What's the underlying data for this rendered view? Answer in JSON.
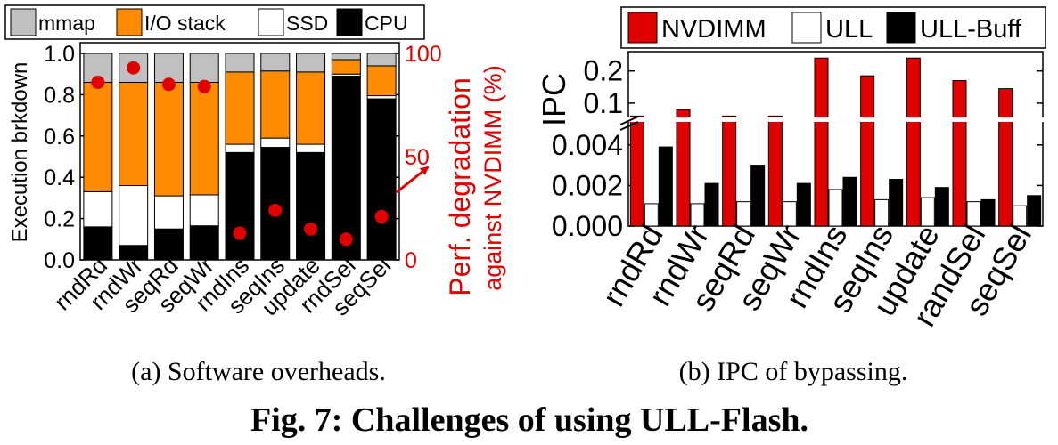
{
  "chart_data": [
    {
      "type": "bar",
      "stacked": true,
      "categories": [
        "rndRd",
        "rndWr",
        "seqRd",
        "seqWr",
        "rndIns",
        "seqIns",
        "update",
        "rndSel",
        "seqSel"
      ],
      "series": [
        {
          "name": "CPU",
          "color": "#000000",
          "values": [
            0.16,
            0.07,
            0.15,
            0.165,
            0.52,
            0.545,
            0.52,
            0.89,
            0.78
          ]
        },
        {
          "name": "SSD",
          "color": "#ffffff",
          "values": [
            0.17,
            0.29,
            0.16,
            0.15,
            0.04,
            0.045,
            0.04,
            0.01,
            0.015
          ]
        },
        {
          "name": "I/O stack",
          "color": "#ff8c00",
          "values": [
            0.53,
            0.5,
            0.55,
            0.545,
            0.35,
            0.325,
            0.35,
            0.07,
            0.145
          ]
        },
        {
          "name": "mmap",
          "color": "#c0c0c0",
          "values": [
            0.14,
            0.14,
            0.14,
            0.14,
            0.09,
            0.085,
            0.09,
            0.03,
            0.06
          ]
        }
      ],
      "degradation": {
        "color": "#e00000",
        "values": [
          86,
          93,
          85,
          84,
          13,
          24,
          15,
          10,
          21
        ]
      },
      "ylabel": "Execution brkdown",
      "y2label": [
        "Perf. degradation",
        "against NVDIMM (%)"
      ],
      "ylim": [
        0,
        1.0
      ],
      "yticks": [
        "0.0",
        "0.2",
        "0.4",
        "0.6",
        "0.8",
        "1.0"
      ],
      "y2lim": [
        0,
        100
      ],
      "y2ticks": [
        "0",
        "50",
        "100"
      ],
      "legend": "top",
      "grid": false
    },
    {
      "type": "bar",
      "broken_axis": true,
      "categories": [
        "rndRd",
        "rndWr",
        "seqRd",
        "seqWr",
        "rndIns",
        "seqIns",
        "update",
        "randSel",
        "seqSel"
      ],
      "series": [
        {
          "name": "NVDIMM",
          "color": "#e00000",
          "values": [
            0.06,
            0.08,
            0.06,
            0.06,
            0.24,
            0.185,
            0.24,
            0.17,
            0.145
          ]
        },
        {
          "name": "ULL",
          "color": "#ffffff",
          "values": [
            0.0011,
            0.0011,
            0.0012,
            0.0012,
            0.0018,
            0.0013,
            0.0014,
            0.0012,
            0.001
          ]
        },
        {
          "name": "ULL-Buff",
          "color": "#000000",
          "values": [
            0.0039,
            0.0021,
            0.003,
            0.0021,
            0.0024,
            0.0023,
            0.0019,
            0.0013,
            0.0015
          ]
        }
      ],
      "ylabel": "IPC",
      "ylim_lower": [
        0,
        0.005
      ],
      "yticks_lower": [
        "0.000",
        "0.002",
        "0.004"
      ],
      "ylim_upper": [
        0.05,
        0.26
      ],
      "yticks_upper": [
        "0.1",
        "0.2"
      ],
      "legend": "top",
      "grid": false
    }
  ],
  "captions": {
    "a": "(a) Software overheads.",
    "b": "(b) IPC of bypassing.",
    "figure": "Fig. 7: Challenges of using ULL-Flash."
  }
}
